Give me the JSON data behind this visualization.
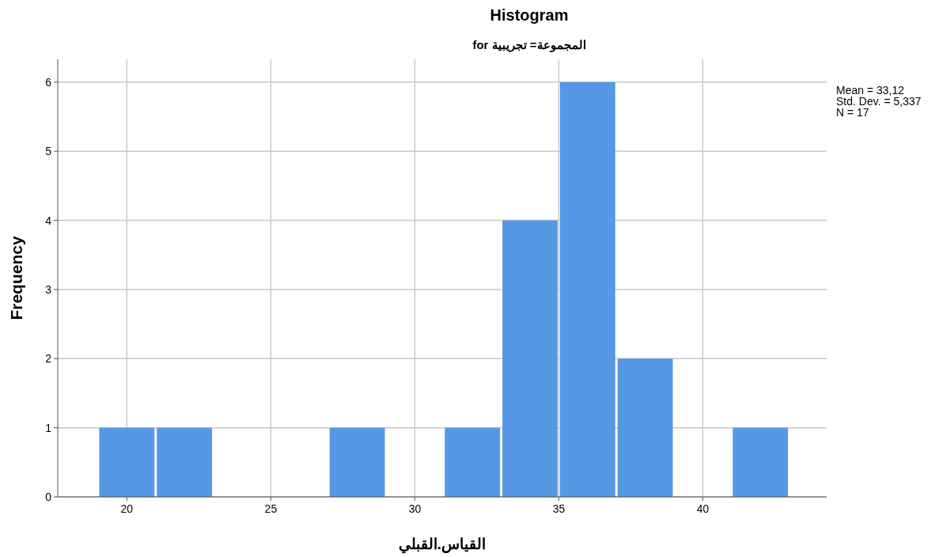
{
  "chart_data": {
    "type": "histogram",
    "title": "Histogram",
    "subtitle": "for المجموعة= تجريبية",
    "xlabel": "القياس.القبلي",
    "ylabel": "Frequency",
    "bins": [
      19,
      21,
      23,
      25,
      27,
      29,
      31,
      33,
      35,
      37,
      39,
      41,
      43
    ],
    "values": [
      1,
      1,
      0,
      0,
      1,
      0,
      1,
      4,
      6,
      2,
      0,
      1
    ],
    "color": "#5698e5",
    "xlim": [
      17.6,
      44.3
    ],
    "xticks": [
      20,
      25,
      30,
      35,
      40
    ],
    "ylim": [
      0,
      6.33
    ],
    "yticks": [
      0,
      1,
      2,
      3,
      4,
      5,
      6
    ],
    "grid": true,
    "annotations": [
      "Mean = 33,12",
      "Std. Dev. = 5,337",
      "N = 17"
    ]
  }
}
